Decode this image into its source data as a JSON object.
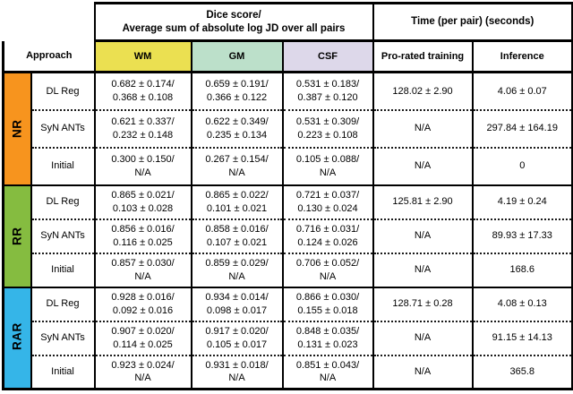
{
  "table": {
    "top_header": {
      "dice": "Dice score/\nAverage sum of absolute log JD over all pairs",
      "time": "Time (per pair) (seconds)"
    },
    "columns": {
      "approach": "Approach",
      "wm": {
        "label": "WM",
        "color": "#EBE051"
      },
      "gm": {
        "label": "GM",
        "color": "#BCE0CA"
      },
      "csf": {
        "label": "CSF",
        "color": "#DDD8EA"
      },
      "training": "Pro-rated training",
      "inference": "Inference"
    },
    "groups": [
      {
        "label": "NR",
        "color": "#F7941E",
        "rows": [
          {
            "approach": "DL Reg",
            "wm": "0.682 ± 0.174/\n0.368 ± 0.108",
            "gm": "0.659 ± 0.191/\n0.366 ± 0.122",
            "csf": "0.531 ± 0.183/\n0.387 ± 0.120",
            "training": "128.02 ± 2.90",
            "inference": "4.06 ± 0.07"
          },
          {
            "approach": "SyN ANTs",
            "wm": "0.621 ± 0.337/\n0.232 ± 0.148",
            "gm": "0.622 ± 0.349/\n0.235 ± 0.134",
            "csf": "0.531 ± 0.309/\n0.223 ± 0.108",
            "training": "N/A",
            "inference": "297.84 ± 164.19"
          },
          {
            "approach": "Initial",
            "wm": "0.300 ± 0.150/\nN/A",
            "gm": "0.267 ± 0.154/\nN/A",
            "csf": "0.105 ± 0.088/\nN/A",
            "training": "N/A",
            "inference": "0"
          }
        ]
      },
      {
        "label": "RR",
        "color": "#85BC40",
        "rows": [
          {
            "approach": "DL Reg",
            "wm": "0.865 ± 0.021/\n0.103 ± 0.028",
            "gm": "0.865 ± 0.022/\n0.101 ± 0.021",
            "csf": "0.721 ± 0.037/\n0.130 ± 0.024",
            "training": "125.81 ± 2.90",
            "inference": "4.19 ± 0.24"
          },
          {
            "approach": "SyN ANTs",
            "wm": "0.856 ± 0.016/\n0.116 ± 0.025",
            "gm": "0.858 ± 0.016/\n0.107 ± 0.021",
            "csf": "0.716 ± 0.031/\n0.124 ± 0.026",
            "training": "N/A",
            "inference": "89.93 ± 17.33"
          },
          {
            "approach": "Initial",
            "wm": "0.857 ± 0.030/\nN/A",
            "gm": "0.859 ± 0.029/\nN/A",
            "csf": "0.706 ± 0.052/\nN/A",
            "training": "N/A",
            "inference": "168.6"
          }
        ]
      },
      {
        "label": "RAR",
        "color": "#35B5E8",
        "rows": [
          {
            "approach": "DL Reg",
            "wm": "0.928 ± 0.016/\n0.092 ± 0.016",
            "gm": "0.934 ± 0.014/\n0.098 ± 0.017",
            "csf": "0.866 ± 0.030/\n0.155 ± 0.018",
            "training": "128.71 ± 0.28",
            "inference": "4.08 ± 0.13"
          },
          {
            "approach": "SyN ANTs",
            "wm": "0.907 ± 0.020/\n0.114 ± 0.025",
            "gm": "0.917 ± 0.020/\n0.105 ± 0.017",
            "csf": "0.848 ± 0.035/\n0.131 ± 0.023",
            "training": "N/A",
            "inference": "91.15 ± 14.13"
          },
          {
            "approach": "Initial",
            "wm": "0.923 ± 0.024/\nN/A",
            "gm": "0.931 ± 0.018/\nN/A",
            "csf": "0.851 ± 0.043/\nN/A",
            "training": "N/A",
            "inference": "365.8"
          }
        ]
      }
    ]
  }
}
